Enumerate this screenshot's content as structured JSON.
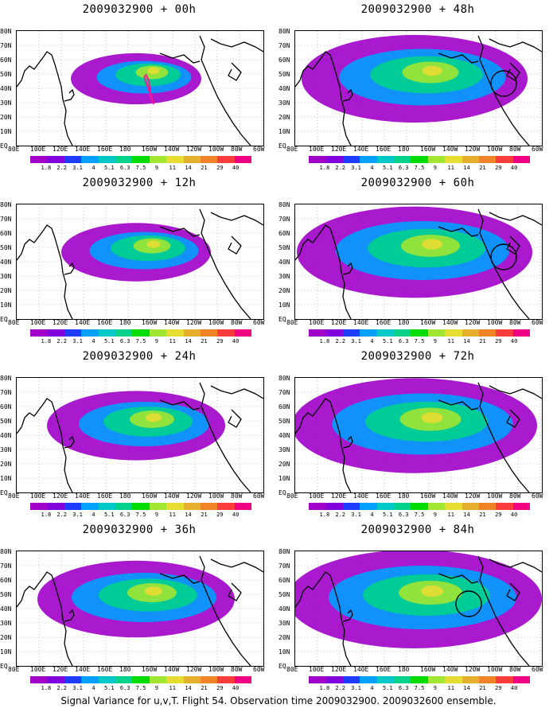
{
  "base_time": "2009032900",
  "panels": [
    {
      "title": "2009032900 + 00h"
    },
    {
      "title": "2009032900 + 48h"
    },
    {
      "title": "2009032900 + 12h"
    },
    {
      "title": "2009032900 + 60h"
    },
    {
      "title": "2009032900 + 24h"
    },
    {
      "title": "2009032900 + 72h"
    },
    {
      "title": "2009032900 + 36h"
    },
    {
      "title": "2009032900 + 84h"
    }
  ],
  "lat_labels": [
    "80N",
    "70N",
    "60N",
    "50N",
    "40N",
    "30N",
    "20N",
    "10N",
    "EQ"
  ],
  "lon_labels": [
    "80E",
    "100E",
    "120E",
    "140E",
    "160E",
    "180",
    "160W",
    "140W",
    "120W",
    "100W",
    "80W",
    "60W"
  ],
  "colorbar": {
    "levels": [
      "1.8",
      "2.2",
      "3.1",
      "4",
      "5.1",
      "6.3",
      "7.5",
      "9",
      "11",
      "14",
      "21",
      "29",
      "40"
    ],
    "colors": [
      "#a000c8",
      "#8200dc",
      "#1e3cff",
      "#00a0ff",
      "#00c8c8",
      "#00d28c",
      "#00dc00",
      "#a0e632",
      "#e6dc32",
      "#e6af2d",
      "#f08228",
      "#fa3c3c",
      "#f00082"
    ]
  },
  "caption": "Signal Variance for u,v,T. Flight 54. Observation time 2009032900. 2009032600 ensemble."
}
